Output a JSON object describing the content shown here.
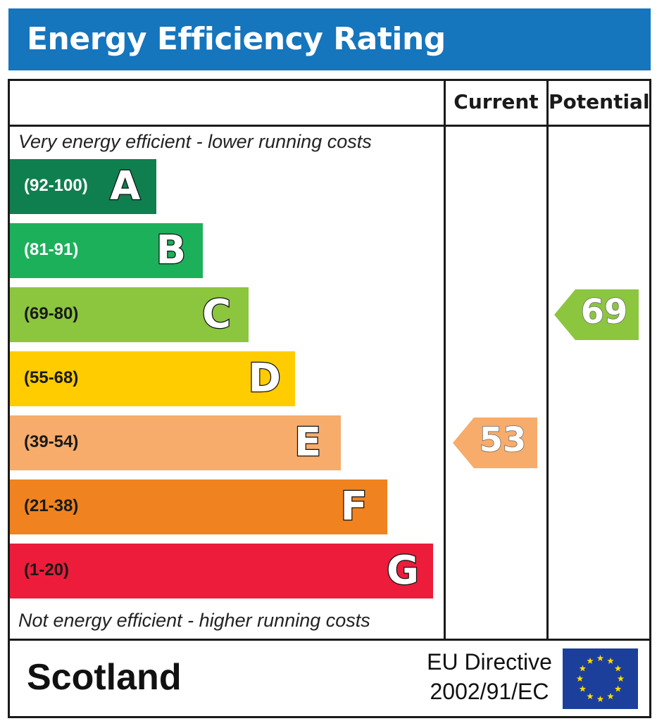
{
  "title": "Energy Efficiency Rating",
  "columns": {
    "current": "Current",
    "potential": "Potential"
  },
  "captions": {
    "top": "Very energy efficient - lower running costs",
    "bottom": "Not energy efficient - higher running costs"
  },
  "bands": [
    {
      "letter": "A",
      "range": "(92-100)",
      "color": "#0f7f4f"
    },
    {
      "letter": "B",
      "range": "(81-91)",
      "color": "#1db05b"
    },
    {
      "letter": "C",
      "range": "(69-80)",
      "color": "#8cc63f"
    },
    {
      "letter": "D",
      "range": "(55-68)",
      "color": "#ffcc00"
    },
    {
      "letter": "E",
      "range": "(39-54)",
      "color": "#f7ac6b"
    },
    {
      "letter": "F",
      "range": "(21-38)",
      "color": "#f0831f"
    },
    {
      "letter": "G",
      "range": "(1-20)",
      "color": "#ec1c3a"
    }
  ],
  "ratings": {
    "current": {
      "value": "53",
      "band": "E",
      "color": "#f7ac6b"
    },
    "potential": {
      "value": "69",
      "band": "C",
      "color": "#8cc63f"
    }
  },
  "footer": {
    "country": "Scotland",
    "directive_line1": "EU Directive",
    "directive_line2": "2002/91/EC",
    "flag_color": "#1d3f9c",
    "star_color": "#ffdd00"
  },
  "colors": {
    "title_bar": "#1575bd"
  }
}
